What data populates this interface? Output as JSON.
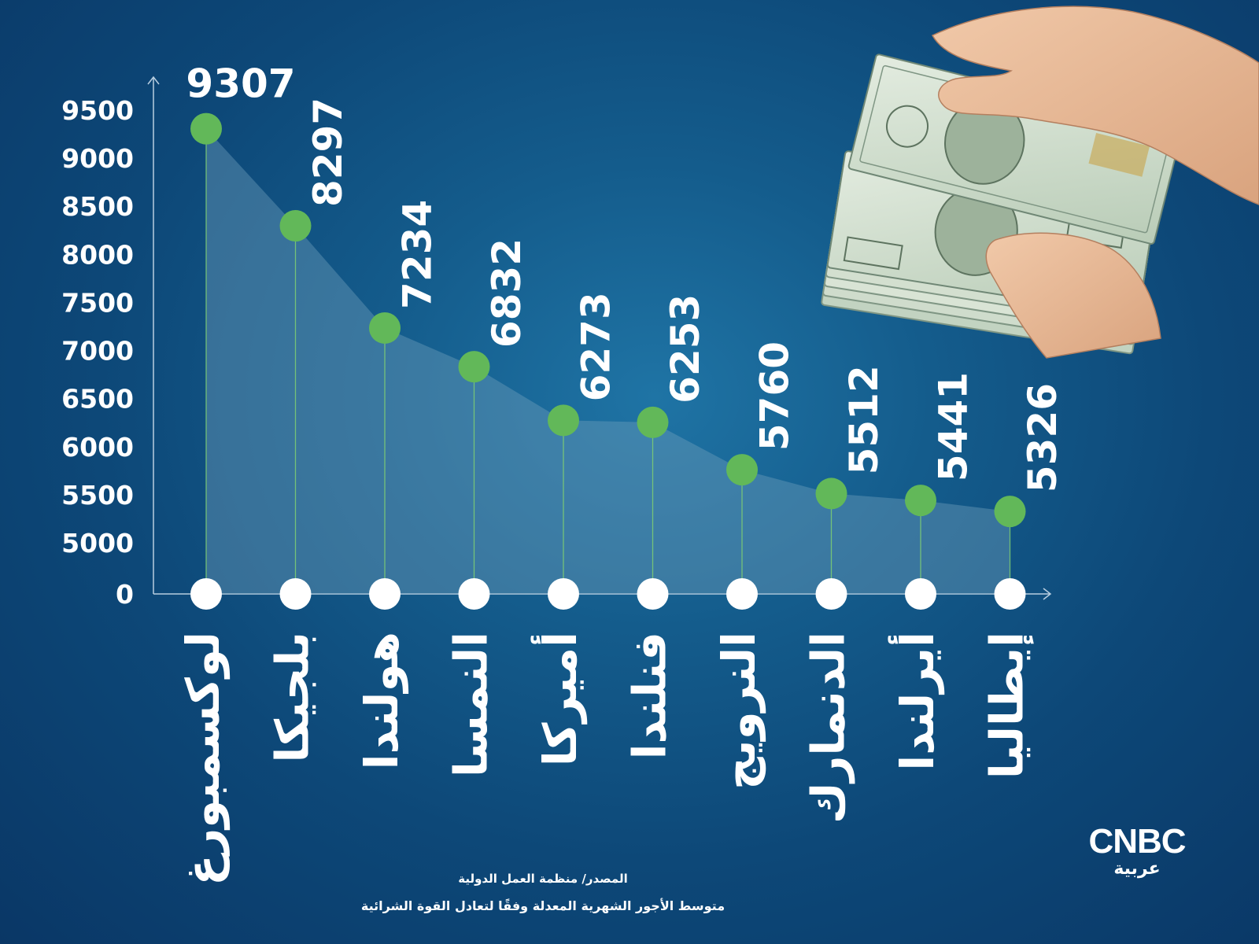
{
  "chart_data": {
    "type": "line",
    "categories": [
      "لوكسمبورغ",
      "بلجيكا",
      "هولندا",
      "النمسا",
      "أميركا",
      "فنلندا",
      "النرويج",
      "الدنمارك",
      "أيرلندا",
      "إيطاليا"
    ],
    "values": [
      9307,
      8297,
      7234,
      6832,
      6273,
      6253,
      5760,
      5512,
      5441,
      5326
    ],
    "value_labels": [
      "9307",
      "8297",
      "7234",
      "6832",
      "6273",
      "6253",
      "5760",
      "5512",
      "5441",
      "5326"
    ],
    "yticks": [
      0,
      5000,
      5500,
      6000,
      6500,
      7000,
      7500,
      8000,
      8500,
      9000,
      9500
    ],
    "ytick_labels": [
      "0",
      "5000",
      "5500",
      "6000",
      "6500",
      "7000",
      "7500",
      "8000",
      "8500",
      "9000",
      "9500"
    ],
    "ylim": [
      5000,
      9500
    ],
    "axis_break": true,
    "grid": false,
    "title": "",
    "xlabel": "",
    "ylabel": ""
  },
  "footer": {
    "source": "المصدر/ منظمة العمل الدولية",
    "description": "متوسط الأجور الشهرية المعدلة وفقًا لتعادل القوة الشرائية"
  },
  "logo": {
    "main": "CNBC",
    "sub": "عربية"
  },
  "colors": {
    "background_center": "#1f74a5",
    "background_edge": "#0a3766",
    "marker": "#62b859",
    "stem": "#7fcf72",
    "baseline_marker": "#ffffff",
    "area_fill": "#6fa0bd"
  },
  "illustration": {
    "icon": "hands-holding-dollar-bills-icon"
  }
}
